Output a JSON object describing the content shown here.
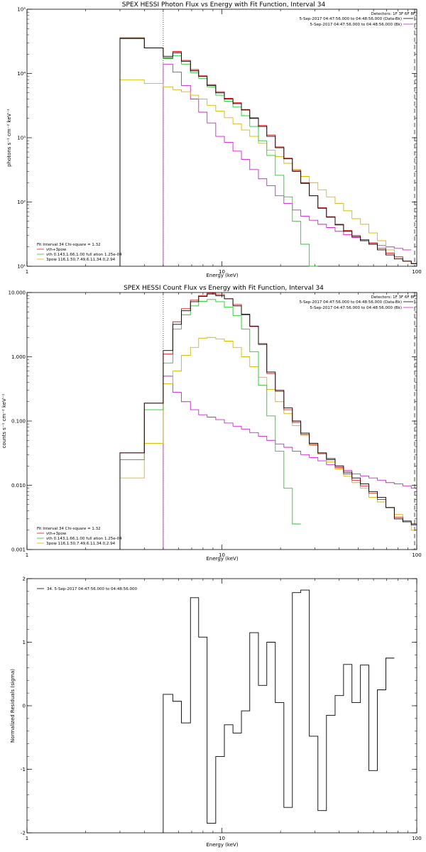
{
  "chart_data": [
    {
      "type": "line",
      "title": "SPEX HESSI Photon Flux vs Energy with Fit Function, Interval 34",
      "xlabel": "Energy (keV)",
      "ylabel": "photons s⁻¹ cm⁻² keV⁻¹",
      "xscale": "log",
      "yscale": "log",
      "xlim": [
        1,
        100
      ],
      "ylim": [
        10,
        100000
      ],
      "x_ticks": [
        {
          "v": 1,
          "label": "1"
        },
        {
          "v": 10,
          "label": "10"
        },
        {
          "v": 100,
          "label": "100"
        }
      ],
      "y_ticks": [
        {
          "v": 10,
          "label": "10¹"
        },
        {
          "v": 100,
          "label": "10²"
        },
        {
          "v": 1000,
          "label": "10³"
        },
        {
          "v": 10000,
          "label": "10⁴"
        },
        {
          "v": 100000,
          "label": "10⁵"
        }
      ],
      "detectors": "Detectors: 1F 3F 6F 8F",
      "time_lines": [
        "5-Sep-2017 04:47:56.000 to 04:48:56.000 (Data-Bk)",
        "5-Sep-2017 04:47:56.000 to 04:48:56.000 (Bk)"
      ],
      "vlines": [
        {
          "x": 5,
          "style": "dotted"
        },
        {
          "x": 97.5,
          "style": "dashed"
        }
      ],
      "bin_edges": [
        3,
        4,
        5,
        5.6,
        6.2,
        6.9,
        7.6,
        8.4,
        9.3,
        10.3,
        11.4,
        12.6,
        13.9,
        15.4,
        17.0,
        18.8,
        20.8,
        23.0,
        25.4,
        28.1,
        31.1,
        34.4,
        38.1,
        42.1,
        46.5,
        51.4,
        56.8,
        62.8,
        69.4,
        76.7,
        84.8,
        93.7,
        100
      ],
      "series": [
        {
          "name": "Data-Bk",
          "color": "#000000",
          "start_bin": 0,
          "values": [
            35000,
            25000,
            18500,
            21000,
            15500,
            11000,
            9000,
            6500,
            5000,
            4000,
            3400,
            2700,
            2000,
            1500,
            1050,
            700,
            470,
            300,
            195,
            125,
            80,
            58,
            44,
            35,
            29,
            25,
            22,
            18,
            15,
            13,
            12,
            11
          ]
        },
        {
          "name": "vth+3pow",
          "color": "#e01010",
          "start_bin": 0,
          "values": [
            36000,
            25000,
            17500,
            22000,
            16000,
            11500,
            9200,
            6700,
            5200,
            4100,
            3500,
            2750,
            2050,
            1550,
            1100,
            720,
            480,
            310,
            200,
            125,
            82,
            59,
            45,
            36,
            30,
            26,
            23,
            19,
            16,
            14,
            12,
            11
          ]
        },
        {
          "name": "vth 0.143,1.66,1.00 full ation 1.25e-04",
          "color": "#20cc20",
          "start_bin": 0,
          "values": [
            36000,
            25000,
            17000,
            19000,
            14000,
            10300,
            8400,
            6200,
            4600,
            3700,
            3000,
            2200,
            1500,
            900,
            530,
            260,
            120,
            50,
            22,
            9
          ]
        },
        {
          "name": "3pow 116,1.50,7.49,6.11,34.0,2.94",
          "color": "#d8b800",
          "start_bin": 0,
          "values": [
            8000,
            7000,
            6200,
            5600,
            5200,
            4600,
            4000,
            3200,
            2600,
            2050,
            1650,
            1320,
            1050,
            820,
            640,
            510,
            400,
            320,
            250,
            200,
            155,
            120,
            95,
            73,
            55,
            45,
            33,
            25,
            18,
            14,
            12,
            11
          ]
        },
        {
          "name": "Bk",
          "color": "#d020d0",
          "start_bin": 2,
          "values": [
            14000,
            10500,
            6500,
            4000,
            2500,
            1700,
            1050,
            850,
            620,
            460,
            320,
            230,
            180,
            125,
            95,
            75,
            60,
            52,
            45,
            40,
            35,
            31,
            28,
            25,
            23,
            21,
            20,
            19,
            18
          ]
        }
      ],
      "legend": [
        "Fit Interval 34   Chi-square = 1.32",
        "vth+3pow",
        "vth 0.143,1.66,1.00  full ation 1.25e-04",
        "3pow 116,1.50,7.49,6.11,34.0,2.94"
      ]
    },
    {
      "type": "line",
      "title": "SPEX HESSI Count Flux vs Energy with Fit Function, Interval 34",
      "xlabel": "Energy (keV)",
      "ylabel": "counts s⁻¹ cm⁻² keV⁻¹",
      "xscale": "log",
      "yscale": "log",
      "xlim": [
        1,
        100
      ],
      "ylim": [
        0.001,
        10
      ],
      "x_ticks": [
        {
          "v": 1,
          "label": "1"
        },
        {
          "v": 10,
          "label": "10"
        },
        {
          "v": 100,
          "label": "100"
        }
      ],
      "y_ticks": [
        {
          "v": 0.001,
          "label": "0.001"
        },
        {
          "v": 0.01,
          "label": "0.010"
        },
        {
          "v": 0.1,
          "label": "0.100"
        },
        {
          "v": 1,
          "label": "1.000"
        },
        {
          "v": 10,
          "label": "10.000"
        }
      ],
      "detectors": "Detectors: 1F 3F 6F 8F",
      "time_lines": [
        "5-Sep-2017 04:47:56.000 to 04:48:56.000 (Data-Bk)",
        "5-Sep-2017 04:47:56.000 to 04:48:56.000 (Bk)"
      ],
      "vlines": [
        {
          "x": 5,
          "style": "dotted"
        },
        {
          "x": 97.5,
          "style": "dashed"
        }
      ],
      "bin_edges": [
        3,
        4,
        5,
        5.6,
        6.2,
        6.9,
        7.6,
        8.4,
        9.3,
        10.3,
        11.4,
        12.6,
        13.9,
        15.4,
        17.0,
        18.8,
        20.8,
        23.0,
        25.4,
        28.1,
        31.1,
        34.4,
        38.1,
        42.1,
        46.5,
        51.4,
        56.8,
        62.8,
        69.4,
        76.7,
        84.8,
        93.7,
        100
      ],
      "series": [
        {
          "name": "Data-Bk",
          "color": "#000000",
          "start_bin": 0,
          "values": [
            0.032,
            0.19,
            1.25,
            3.2,
            5.2,
            7.2,
            8.7,
            9.5,
            8.9,
            8.0,
            6.2,
            4.6,
            3.0,
            1.6,
            0.58,
            0.3,
            0.16,
            0.1,
            0.065,
            0.045,
            0.032,
            0.026,
            0.02,
            0.016,
            0.013,
            0.0105,
            0.008,
            0.0065,
            0.0045,
            0.003,
            0.0027,
            0.0025
          ]
        },
        {
          "name": "vth+3pow",
          "color": "#e01010",
          "start_bin": 0,
          "values": [
            0.032,
            0.19,
            1.1,
            3.5,
            5.6,
            7.6,
            9.0,
            9.8,
            9.3,
            8.0,
            6.5,
            4.5,
            2.95,
            1.55,
            0.55,
            0.29,
            0.15,
            0.095,
            0.062,
            0.043,
            0.031,
            0.025,
            0.019,
            0.015,
            0.012,
            0.0098,
            0.0075,
            0.006,
            0.0045,
            0.0032,
            0.0028,
            0.0024
          ]
        },
        {
          "name": "vth 0.143,1.66,1.00 full ation 1.25e-04",
          "color": "#20cc20",
          "start_bin": 0,
          "values": [
            0.025,
            0.15,
            0.8,
            2.7,
            4.5,
            6.2,
            7.3,
            7.8,
            7.2,
            5.9,
            4.4,
            2.7,
            1.2,
            0.36,
            0.12,
            0.034,
            0.009,
            0.0025
          ]
        },
        {
          "name": "3pow 116,1.50,7.49,6.11,34.0,2.94",
          "color": "#d8b800",
          "start_bin": 0,
          "values": [
            0.013,
            0.045,
            0.38,
            0.6,
            1.05,
            1.4,
            1.95,
            2.0,
            1.9,
            1.75,
            1.4,
            1.0,
            0.7,
            0.48,
            0.31,
            0.2,
            0.13,
            0.085,
            0.06,
            0.042,
            0.031,
            0.023,
            0.018,
            0.014,
            0.011,
            0.009,
            0.0065,
            0.0055,
            0.0045,
            0.0035,
            0.0027,
            0.002
          ]
        },
        {
          "name": "Bk",
          "color": "#d020d0",
          "start_bin": 2,
          "values": [
            0.5,
            0.28,
            0.2,
            0.15,
            0.125,
            0.115,
            0.105,
            0.093,
            0.083,
            0.075,
            0.066,
            0.058,
            0.05,
            0.044,
            0.039,
            0.034,
            0.03,
            0.027,
            0.024,
            0.021,
            0.019,
            0.017,
            0.015,
            0.014,
            0.013,
            0.012,
            0.011,
            0.0105,
            0.0098,
            0.009
          ]
        }
      ],
      "legend": [
        "Fit Interval 34   Chi-square = 1.32",
        "vth+3pow",
        "vth 0.143,1.66,1.00  full ation 1.25e-04",
        "3pow 116,1.50,7.49,6.11,34.0,2.94"
      ]
    },
    {
      "type": "line",
      "title": "",
      "xlabel": "Energy (keV)",
      "ylabel": "Normalized Residuals (sigma)",
      "xscale": "log",
      "yscale": "linear",
      "xlim": [
        1,
        100
      ],
      "ylim": [
        -2,
        2
      ],
      "x_ticks": [
        {
          "v": 1,
          "label": "1"
        },
        {
          "v": 10,
          "label": "10"
        },
        {
          "v": 100,
          "label": "100"
        }
      ],
      "y_ticks": [
        {
          "v": -2,
          "label": "-2"
        },
        {
          "v": -1,
          "label": "-1"
        },
        {
          "v": 0,
          "label": "0"
        },
        {
          "v": 1,
          "label": "1"
        },
        {
          "v": 2,
          "label": "2"
        }
      ],
      "bin_edges": [
        5,
        5.6,
        6.2,
        6.9,
        7.6,
        8.4,
        9.3,
        10.3,
        11.4,
        12.6,
        13.9,
        15.4,
        17.0,
        18.8,
        20.8,
        23.0,
        25.4,
        28.1,
        31.1,
        34.4,
        38.1,
        42.1,
        46.5,
        51.4,
        56.8,
        62.8,
        69.4,
        76.7,
        84.8,
        93.7,
        100
      ],
      "series": [
        {
          "name": "34.  5-Sep-2017 04:47:56.000 to 04:48:56.000",
          "color": "#000000",
          "start_bin": 0,
          "values": [
            0.18,
            0.07,
            -0.27,
            1.7,
            1.08,
            -1.85,
            -0.8,
            -0.3,
            -0.43,
            -0.08,
            1.15,
            0.32,
            1.0,
            0.05,
            -1.6,
            1.78,
            1.82,
            -0.48,
            -1.65,
            -0.15,
            0.16,
            0.65,
            0.05,
            0.64,
            -1.02,
            0.25,
            0.75
          ]
        }
      ],
      "legend": [
        "34.  5-Sep-2017 04:47:56.000 to 04:48:56.000"
      ]
    }
  ]
}
